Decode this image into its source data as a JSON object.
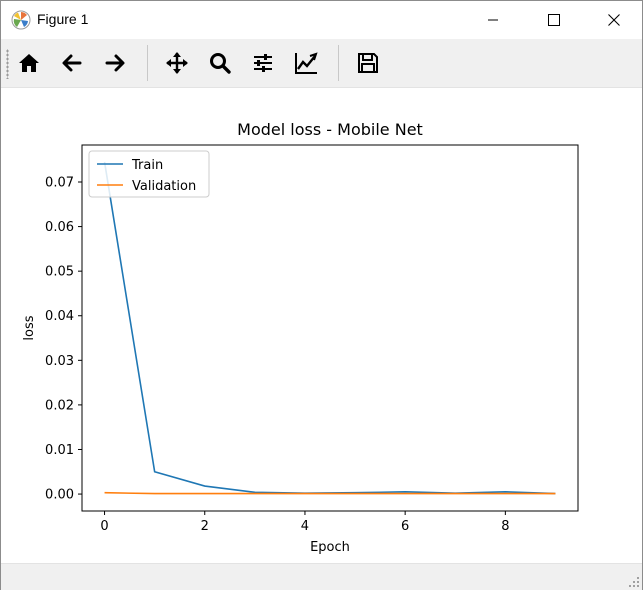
{
  "window": {
    "title": "Figure 1",
    "controls": [
      "minimize",
      "maximize",
      "close"
    ]
  },
  "toolbar": {
    "buttons": [
      {
        "name": "home",
        "icon": "home-icon"
      },
      {
        "name": "back",
        "icon": "arrow-left-icon"
      },
      {
        "name": "forward",
        "icon": "arrow-right-icon"
      },
      {
        "name": "pan",
        "icon": "move-icon"
      },
      {
        "name": "zoom",
        "icon": "magnifier-icon"
      },
      {
        "name": "subplots",
        "icon": "sliders-icon"
      },
      {
        "name": "customize",
        "icon": "line-chart-icon"
      },
      {
        "name": "save",
        "icon": "floppy-disk-icon"
      }
    ]
  },
  "chart_data": {
    "type": "line",
    "title": "Model loss - Mobile Net",
    "xlabel": "Epoch",
    "ylabel": "loss",
    "xlim": [
      -0.45,
      9.45
    ],
    "ylim": [
      -0.0038,
      0.0783
    ],
    "xticks": [
      0,
      2,
      4,
      6,
      8
    ],
    "xtick_labels": [
      "0",
      "2",
      "4",
      "6",
      "8"
    ],
    "yticks": [
      0,
      0.01,
      0.02,
      0.03,
      0.04,
      0.05,
      0.06,
      0.07
    ],
    "ytick_labels": [
      "0.00",
      "0.01",
      "0.02",
      "0.03",
      "0.04",
      "0.05",
      "0.06",
      "0.07"
    ],
    "grid": false,
    "legend": "upper-left",
    "series": [
      {
        "name": "Train",
        "color": "#1f77b4",
        "x": [
          0,
          1,
          2,
          3,
          4,
          5,
          6,
          7,
          8,
          9
        ],
        "y": [
          0.0745,
          0.005,
          0.0018,
          0.0004,
          0.0002,
          0.0003,
          0.0005,
          0.0002,
          0.0005,
          0.0001
        ]
      },
      {
        "name": "Validation",
        "color": "#ff7f0e",
        "x": [
          0,
          1,
          2,
          3,
          4,
          5,
          6,
          7,
          8,
          9
        ],
        "y": [
          0.0003,
          0.0001,
          0.0001,
          0.0001,
          0.0001,
          0.0001,
          0.0001,
          0.0001,
          0.0001,
          0.0001
        ]
      }
    ]
  }
}
